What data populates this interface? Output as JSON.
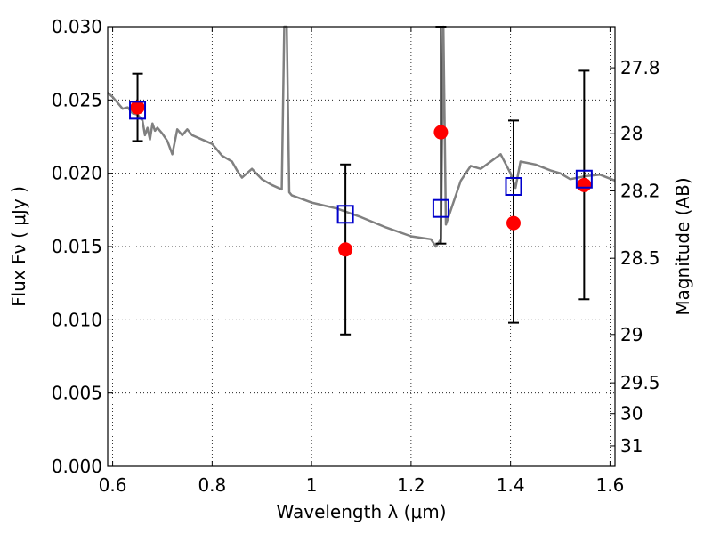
{
  "chart_data": {
    "type": "scatter",
    "title": "",
    "xlabel": "Wavelength  λ (μm)",
    "ylabel": "Flux  Fν  ( μJy )",
    "ylabel_right": "Magnitude (AB)",
    "xlim": [
      0.59,
      1.61
    ],
    "ylim": [
      0.0,
      0.03
    ],
    "grid": true,
    "x_ticks": [
      0.6,
      0.8,
      1.0,
      1.2,
      1.4,
      1.6
    ],
    "x_tick_labels": [
      "0.6",
      "0.8",
      "1",
      "1.2",
      "1.4",
      "1.6"
    ],
    "y_ticks": [
      0.0,
      0.005,
      0.01,
      0.015,
      0.02,
      0.025,
      0.03
    ],
    "y_tick_labels": [
      "0.000",
      "0.005",
      "0.010",
      "0.015",
      "0.020",
      "0.025",
      "0.030"
    ],
    "right_axis_ticks": [
      {
        "label": "27.8",
        "flux": 0.0272
      },
      {
        "label": "28",
        "flux": 0.0227
      },
      {
        "label": "28.2",
        "flux": 0.0188
      },
      {
        "label": "28.5",
        "flux": 0.0142
      },
      {
        "label": "29",
        "flux": 0.009
      },
      {
        "label": "29.5",
        "flux": 0.0057
      },
      {
        "label": "30",
        "flux": 0.0036
      },
      {
        "label": "31",
        "flux": 0.0014
      }
    ],
    "series": [
      {
        "kind": "model-spectrum",
        "color": "#808080",
        "x": [
          0.59,
          0.6,
          0.61,
          0.62,
          0.63,
          0.64,
          0.65,
          0.66,
          0.665,
          0.67,
          0.675,
          0.68,
          0.685,
          0.69,
          0.7,
          0.71,
          0.72,
          0.73,
          0.74,
          0.75,
          0.76,
          0.78,
          0.8,
          0.82,
          0.84,
          0.85,
          0.86,
          0.88,
          0.9,
          0.92,
          0.94,
          0.945,
          0.95,
          0.955,
          0.96,
          1.0,
          1.05,
          1.1,
          1.15,
          1.2,
          1.24,
          1.25,
          1.26,
          1.265,
          1.27,
          1.28,
          1.3,
          1.32,
          1.34,
          1.36,
          1.38,
          1.4,
          1.41,
          1.42,
          1.45,
          1.48,
          1.5,
          1.52,
          1.55,
          1.58,
          1.61
        ],
        "y": [
          0.0255,
          0.0252,
          0.0248,
          0.0244,
          0.0245,
          0.0241,
          0.024,
          0.0236,
          0.0226,
          0.0231,
          0.0223,
          0.0234,
          0.0229,
          0.0231,
          0.0227,
          0.0222,
          0.0213,
          0.023,
          0.0226,
          0.023,
          0.0226,
          0.0223,
          0.022,
          0.0212,
          0.0208,
          0.0202,
          0.0197,
          0.0203,
          0.0196,
          0.0192,
          0.0189,
          0.03,
          0.03,
          0.0187,
          0.0185,
          0.018,
          0.0176,
          0.017,
          0.0163,
          0.0157,
          0.0155,
          0.015,
          0.0155,
          0.03,
          0.0165,
          0.0175,
          0.0195,
          0.0205,
          0.0203,
          0.0208,
          0.0213,
          0.02,
          0.019,
          0.0208,
          0.0206,
          0.0202,
          0.02,
          0.0196,
          0.0198,
          0.0199,
          0.0195
        ]
      },
      {
        "kind": "observed",
        "color": "#ff0000",
        "marker": "circle",
        "x": [
          0.65,
          1.068,
          1.26,
          1.406,
          1.548
        ],
        "y": [
          0.0245,
          0.0148,
          0.0228,
          0.0166,
          0.0192
        ],
        "err_low": [
          0.0222,
          0.009,
          0.0152,
          0.0098,
          0.0114
        ],
        "err_high": [
          0.0268,
          0.0206,
          0.03,
          0.0236,
          0.027
        ]
      },
      {
        "kind": "model-photometry",
        "color": "#0000cc",
        "marker": "open-square",
        "x": [
          0.65,
          1.068,
          1.26,
          1.406,
          1.548
        ],
        "y": [
          0.0243,
          0.0172,
          0.0176,
          0.0191,
          0.0196
        ]
      }
    ]
  }
}
